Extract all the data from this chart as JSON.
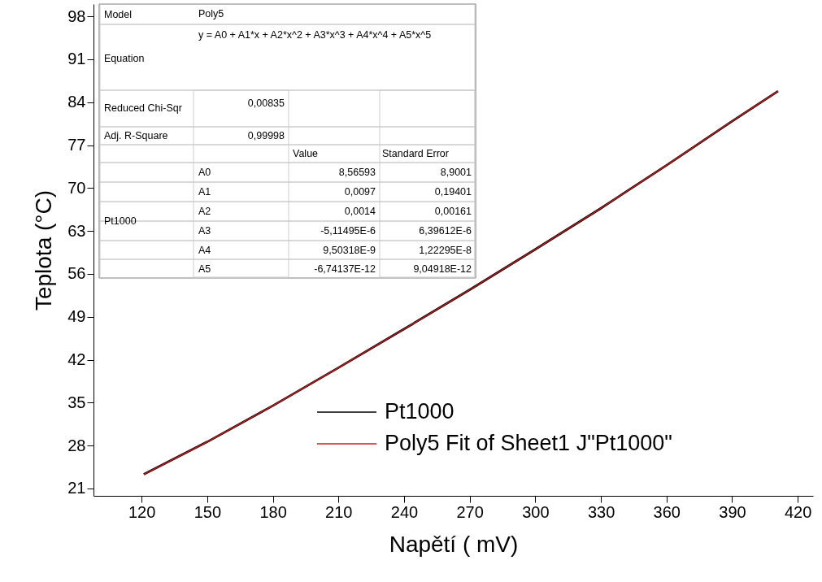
{
  "chart_data": {
    "type": "line",
    "xlabel": "Napětí ( mV)",
    "ylabel": "Teplota (°C)",
    "x": [
      121,
      150,
      180,
      210,
      240,
      270,
      300,
      330,
      360,
      390,
      411
    ],
    "series": [
      {
        "name": "Pt1000",
        "color": "#000000",
        "values": [
          23.3,
          28.6,
          34.5,
          40.7,
          47.0,
          53.4,
          60.0,
          66.7,
          73.7,
          80.9,
          85.8
        ]
      },
      {
        "name": "Poly5 Fit of Sheet1 J\"Pt1000\"",
        "color": "#d01c1c",
        "values": [
          23.3,
          28.6,
          34.5,
          40.7,
          47.0,
          53.4,
          60.0,
          66.7,
          73.7,
          80.9,
          85.8
        ]
      }
    ],
    "xlim": [
      98,
      427
    ],
    "ylim": [
      19.8,
      100
    ],
    "xticks": [
      120,
      150,
      180,
      210,
      240,
      270,
      300,
      330,
      360,
      390,
      420
    ],
    "yticks": [
      21,
      28,
      35,
      42,
      49,
      56,
      63,
      70,
      77,
      84,
      91,
      98
    ],
    "grid": false,
    "legend": "bottom right",
    "marker": "none",
    "line_style": "solid",
    "annotations": [
      "Model",
      "Poly5",
      "Equation",
      "y = A0 + A1*x + A2*x^2 + A3*x^3 + A4*x^4 + A5*x^5",
      "Reduced Chi-Sqr",
      "0,00835",
      "Adj. R-Square",
      "0,99998",
      "Value",
      "Standard Error",
      "Pt1000",
      "A0",
      "8,56593",
      "8,9001",
      "A1",
      "0,0097",
      "0,19401",
      "A2",
      "0,0014",
      "0,00161",
      "A3",
      "-5,11495E-6",
      "6,39612E-6",
      "A4",
      "9,50318E-9",
      "1,22295E-8",
      "A5",
      "-6,74137E-12",
      "9,04918E-12"
    ]
  }
}
